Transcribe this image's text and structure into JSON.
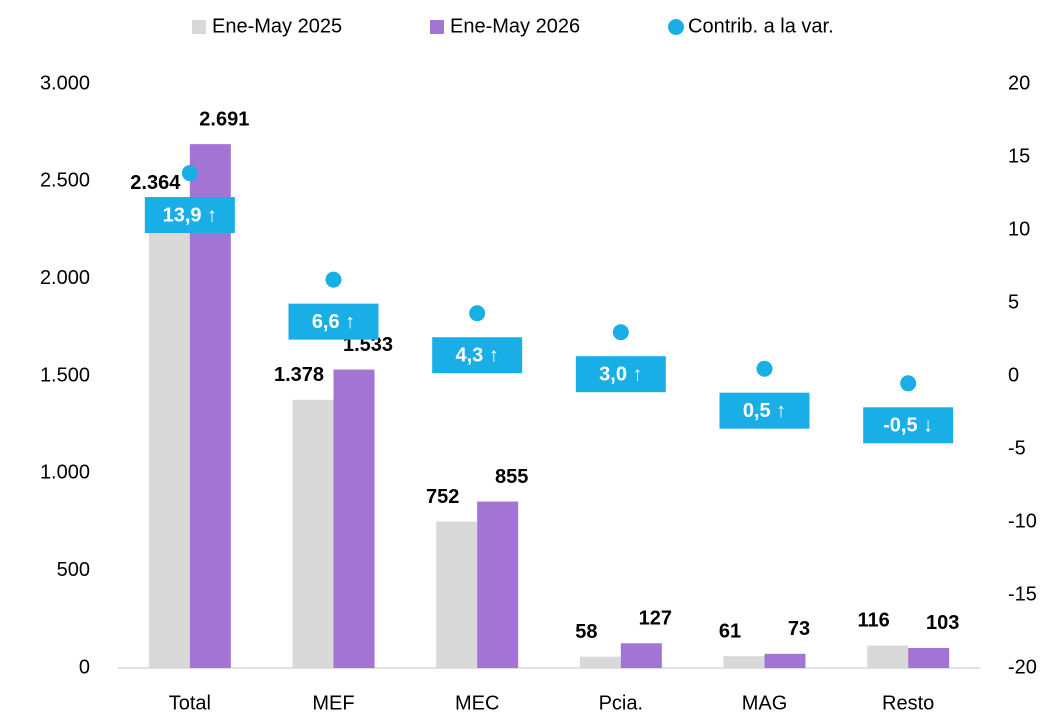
{
  "chart_data": {
    "type": "bar",
    "categories": [
      "Total",
      "MEF",
      "MEC",
      "Pcia.",
      "MAG",
      "Resto"
    ],
    "series": [
      {
        "name": "Ene-May 2025",
        "color": "#d9d9d9",
        "values": [
          2364,
          1378,
          752,
          58,
          61,
          116
        ],
        "value_labels": [
          "2.364",
          "1.378",
          "752",
          "58",
          "61",
          "116"
        ]
      },
      {
        "name": "Ene-May 2026",
        "color": "#a474d4",
        "values": [
          2691,
          1533,
          855,
          127,
          73,
          103
        ],
        "value_labels": [
          "2.691",
          "1.533",
          "855",
          "127",
          "73",
          "103"
        ]
      },
      {
        "name": "Contrib. a la var.",
        "color": "#1aaee6",
        "type": "scatter",
        "axis": "y2",
        "values": [
          13.9,
          6.6,
          4.3,
          3.0,
          0.5,
          -0.5
        ],
        "value_labels": [
          "13,9 ↑",
          "6,6 ↑",
          "4,3 ↑",
          "3,0 ↑",
          "0,5 ↑",
          "-0,5 ↓"
        ]
      }
    ],
    "ylim": [
      0,
      3000
    ],
    "yticks": [
      0,
      500,
      {
        "value": 1000,
        "label": "1.000"
      },
      {
        "value": 1500,
        "label": "1.500"
      },
      {
        "value": 2000,
        "label": "2.000"
      },
      {
        "value": 2500,
        "label": "2.500"
      },
      {
        "value": 3000,
        "label": "3.000"
      }
    ],
    "y2lim": [
      -20,
      20
    ],
    "y2ticks": [
      -20,
      -15,
      -10,
      -5,
      0,
      5,
      10,
      15,
      20
    ],
    "legend": "top",
    "grid": false
  }
}
